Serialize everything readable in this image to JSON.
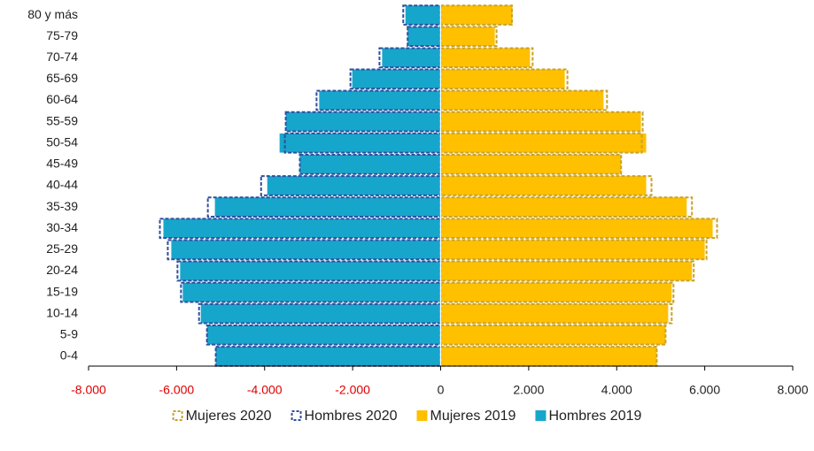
{
  "chart_data": {
    "type": "pyramid",
    "categories": [
      "80 y más",
      "75-79",
      "70-74",
      "65-69",
      "60-64",
      "55-59",
      "50-54",
      "45-49",
      "40-44",
      "35-39",
      "30-34",
      "25-29",
      "20-24",
      "15-19",
      "10-14",
      "5-9",
      "0-4"
    ],
    "series": [
      {
        "name": "Mujeres 2020",
        "color": "#c9a227",
        "style": "dashed",
        "values": [
          1620,
          1270,
          2090,
          2880,
          3780,
          4590,
          4570,
          4100,
          4790,
          5710,
          6280,
          6040,
          5750,
          5290,
          5250,
          5110,
          4910
        ]
      },
      {
        "name": "Hombres 2020",
        "color": "#2f4f9f",
        "style": "dashed",
        "values": [
          -850,
          -750,
          -1390,
          -2050,
          -2820,
          -3520,
          -3540,
          -3200,
          -4080,
          -5290,
          -6380,
          -6200,
          -5980,
          -5900,
          -5490,
          -5310,
          -5110
        ]
      },
      {
        "name": "Mujeres 2019",
        "color": "#ffc000",
        "style": "filled",
        "values": [
          1630,
          1230,
          2030,
          2820,
          3700,
          4550,
          4670,
          4100,
          4670,
          5590,
          6180,
          6000,
          5710,
          5250,
          5170,
          5110,
          4910
        ]
      },
      {
        "name": "Hombres 2019",
        "color": "#17a6cb",
        "style": "filled",
        "values": [
          -800,
          -750,
          -1330,
          -2010,
          -2760,
          -3520,
          -3660,
          -3200,
          -3940,
          -5130,
          -6300,
          -6120,
          -5920,
          -5860,
          -5450,
          -5310,
          -5110
        ]
      }
    ],
    "xlim": [
      -8000,
      8000
    ],
    "xticks": [
      {
        "value": -8000,
        "label": "-8.000"
      },
      {
        "value": -6000,
        "label": "-6.000"
      },
      {
        "value": -4000,
        "label": "-4.000"
      },
      {
        "value": -2000,
        "label": "-2.000"
      },
      0,
      {
        "value": 2000,
        "label": "2.000"
      },
      {
        "value": 4000,
        "label": "4.000"
      },
      {
        "value": 6000,
        "label": "6.000"
      },
      {
        "value": 8000,
        "label": "8.000"
      }
    ],
    "negative_tick_color": "#e00000",
    "legend": "bottom"
  }
}
